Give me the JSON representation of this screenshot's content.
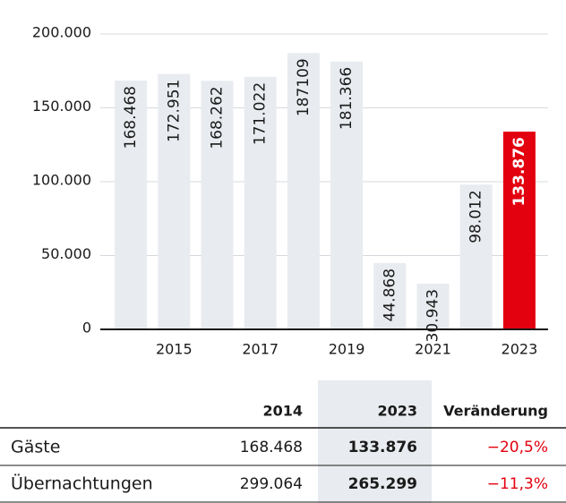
{
  "chart_data": {
    "type": "bar",
    "categories": [
      null,
      "2015",
      null,
      "2017",
      null,
      "2019",
      null,
      "2021",
      null,
      "2023"
    ],
    "values": [
      168468,
      172951,
      168262,
      171022,
      187109,
      181366,
      44868,
      30943,
      98012,
      133876
    ],
    "value_labels": [
      "168.468",
      "172.951",
      "168.262",
      "171.022",
      "187109",
      "181.366",
      "44.868",
      "30.943",
      "98.012",
      "133.876"
    ],
    "colors": [
      "#e8ebef",
      "#e8ebef",
      "#e8ebef",
      "#e8ebef",
      "#e8ebef",
      "#e8ebef",
      "#e8ebef",
      "#e8ebef",
      "#e8ebef",
      "#e3000f"
    ],
    "ylim": [
      0,
      200000
    ],
    "yticks": [
      0,
      {
        "value": 50000,
        "label": "50.000"
      },
      {
        "value": 100000,
        "label": "100.000"
      },
      {
        "value": 150000,
        "label": "150.000"
      },
      {
        "value": 200000,
        "label": "200.000"
      }
    ],
    "grid": true
  },
  "table": {
    "columns": [
      "2014",
      "2023",
      "Veränderung"
    ],
    "rows": [
      [
        "Gäste",
        "168.468",
        "133.876",
        "−20,5%"
      ],
      [
        "Übernachtungen",
        "299.064",
        "265.299",
        "−11,3%"
      ]
    ]
  }
}
